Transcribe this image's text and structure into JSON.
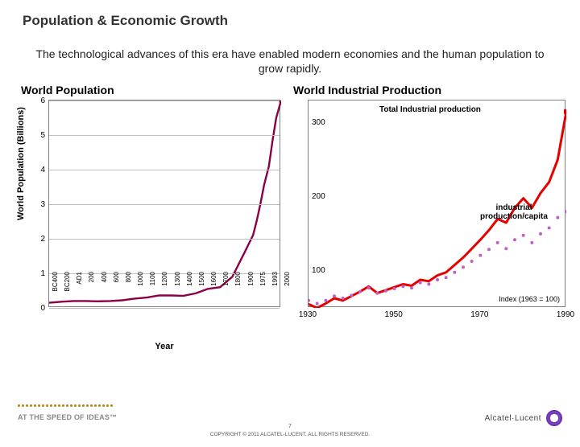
{
  "title": "Population & Economic Growth",
  "subtitle": "The technological advances of this era have enabled modern economies and the human population to grow rapidly.",
  "left_chart": {
    "title": "World Population",
    "type": "line",
    "ylabel": "World Population (Billions)",
    "xlabel": "Year",
    "ylim": [
      0,
      6
    ],
    "yticks": [
      0,
      1,
      2,
      3,
      4,
      5,
      6
    ],
    "xticks": [
      "BC400",
      "BC200",
      "AD1",
      "200",
      "400",
      "600",
      "800",
      "1000",
      "1100",
      "1200",
      "1300",
      "1400",
      "1500",
      "1600",
      "1700",
      "1800",
      "1900",
      "1975",
      "1993",
      "2000"
    ],
    "series": {
      "x": [
        0,
        1,
        2,
        3,
        4,
        5,
        6,
        7,
        8,
        9,
        10,
        11,
        12,
        13,
        14,
        15,
        16,
        16.35,
        16.7,
        17,
        17.3,
        17.6,
        18,
        18.3,
        18.6,
        19
      ],
      "y": [
        0.15,
        0.18,
        0.2,
        0.2,
        0.19,
        0.2,
        0.22,
        0.27,
        0.3,
        0.36,
        0.36,
        0.35,
        0.42,
        0.55,
        0.6,
        0.9,
        1.6,
        1.85,
        2.1,
        2.52,
        3.0,
        3.55,
        4.1,
        4.85,
        5.5,
        6.0
      ],
      "color": "#8b0046",
      "width": 2.4,
      "marker_last_color": "#8b0046",
      "marker_last_size": 5
    },
    "grid_color": "#bfbfbf",
    "border_color": "#7f7f7f",
    "background": "#ffffff"
  },
  "right_chart": {
    "title": "World Industrial Production",
    "type": "line",
    "xlim": [
      1930,
      1990
    ],
    "xticks": [
      1930,
      1950,
      1970,
      1990
    ],
    "yticks": [
      100,
      200,
      300
    ],
    "ylim": [
      50,
      330
    ],
    "series_industrial": {
      "label": "Total Industrial production",
      "color": "#e60000",
      "width": 3.2,
      "x": [
        1930,
        1932,
        1934,
        1936,
        1938,
        1940,
        1942,
        1944,
        1946,
        1948,
        1950,
        1952,
        1954,
        1956,
        1958,
        1960,
        1962,
        1964,
        1966,
        1968,
        1970,
        1972,
        1974,
        1976,
        1978,
        1980,
        1982,
        1984,
        1986,
        1988,
        1990
      ],
      "y": [
        55,
        50,
        56,
        63,
        60,
        66,
        72,
        79,
        70,
        74,
        78,
        82,
        80,
        88,
        86,
        94,
        98,
        108,
        118,
        130,
        142,
        155,
        170,
        165,
        185,
        198,
        185,
        205,
        220,
        250,
        315
      ]
    },
    "series_percap": {
      "label": "industrial production/capita",
      "color": "#c060c0",
      "marker_size": 2.0,
      "x": [
        1930,
        1932,
        1934,
        1936,
        1938,
        1940,
        1942,
        1944,
        1946,
        1948,
        1950,
        1952,
        1954,
        1956,
        1958,
        1960,
        1962,
        1964,
        1966,
        1968,
        1970,
        1972,
        1974,
        1976,
        1978,
        1980,
        1982,
        1984,
        1986,
        1988,
        1990
      ],
      "y": [
        60,
        56,
        60,
        66,
        63,
        67,
        72,
        77,
        70,
        73,
        76,
        79,
        77,
        84,
        82,
        88,
        91,
        98,
        105,
        113,
        121,
        129,
        138,
        130,
        142,
        148,
        138,
        150,
        158,
        172,
        180
      ]
    },
    "index_note": "Index (1963 = 100)",
    "background": "#ffffff",
    "border_color": "#7f7f7f"
  },
  "footer": {
    "tagline": "AT THE SPEED OF IDEAS™",
    "brand": "Alcatel·Lucent",
    "page": "7",
    "copyright": "COPYRIGHT © 2011 ALCATEL-LUCENT.  ALL RIGHTS RESERVED."
  },
  "colors": {
    "title": "#333333",
    "accent": "#b8860b",
    "brand": "#7a3fbf"
  }
}
